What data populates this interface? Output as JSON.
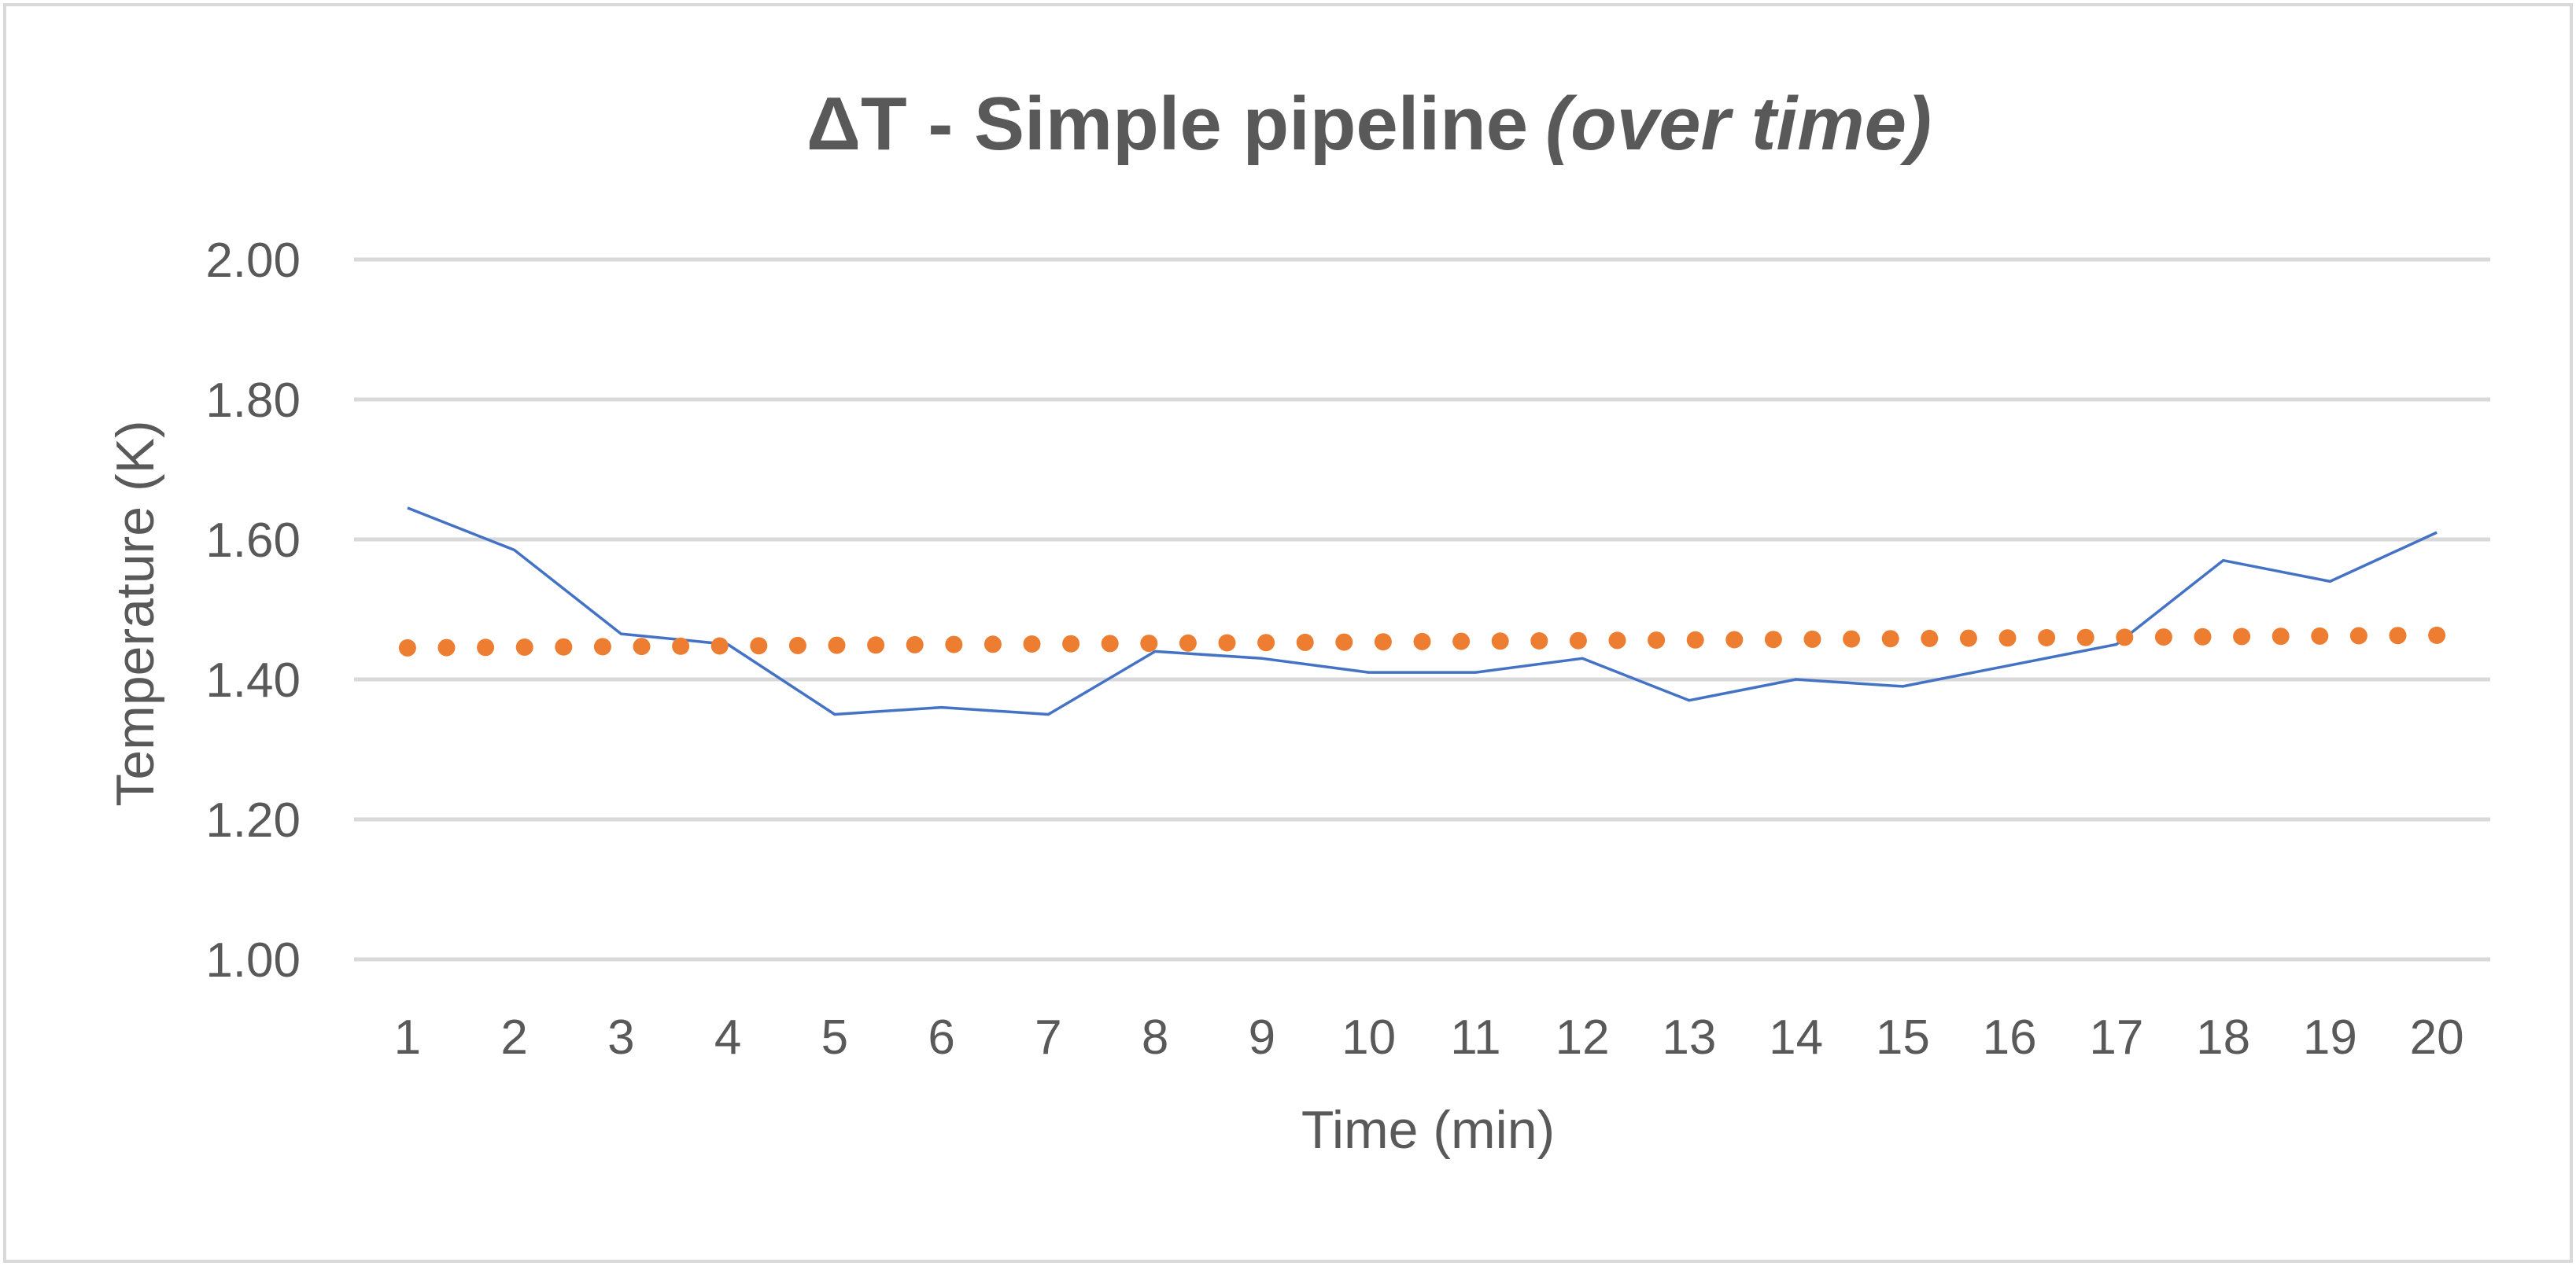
{
  "chart_data": {
    "type": "line",
    "title": "ΔT - Simple pipeline",
    "subtitle": "(over time)",
    "xlabel": "Time (min)",
    "ylabel": "Temperature (K)",
    "categories": [
      "1",
      "2",
      "3",
      "4",
      "5",
      "6",
      "7",
      "8",
      "9",
      "10",
      "11",
      "12",
      "13",
      "14",
      "15",
      "16",
      "17",
      "18",
      "19",
      "20"
    ],
    "ylim": [
      1.0,
      2.0
    ],
    "y_ticks": [
      "1.00",
      "1.20",
      "1.40",
      "1.60",
      "1.80",
      "2.00"
    ],
    "grid": true,
    "series": [
      {
        "style": "solid",
        "color": "#4472C4",
        "values": [
          1.645,
          1.585,
          1.465,
          1.45,
          1.35,
          1.36,
          1.35,
          1.44,
          1.43,
          1.41,
          1.41,
          1.43,
          1.37,
          1.4,
          1.39,
          1.42,
          1.45,
          1.57,
          1.54,
          1.61
        ]
      },
      {
        "style": "dotted-trendline",
        "color": "#ED7D31",
        "trend_start": 1.445,
        "trend_end": 1.463
      }
    ]
  }
}
